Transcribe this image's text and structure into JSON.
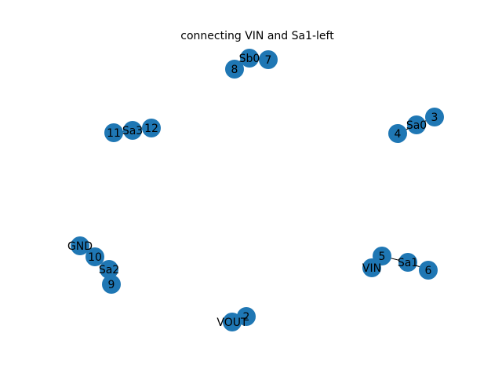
{
  "title": "connecting VIN and Sa1-left",
  "colors": {
    "node": "#1f77b4",
    "edge": "#000000",
    "label": "#000000",
    "background": "#ffffff"
  },
  "nodes": [
    {
      "id": "Sb0",
      "label": "Sb0"
    },
    {
      "id": "7",
      "label": "7"
    },
    {
      "id": "8",
      "label": "8"
    },
    {
      "id": "Sa0",
      "label": "Sa0"
    },
    {
      "id": "3",
      "label": "3"
    },
    {
      "id": "4",
      "label": "4"
    },
    {
      "id": "Sa3",
      "label": "Sa3"
    },
    {
      "id": "11",
      "label": "11"
    },
    {
      "id": "12",
      "label": "12"
    },
    {
      "id": "GND",
      "label": "GND"
    },
    {
      "id": "10",
      "label": "10"
    },
    {
      "id": "Sa2",
      "label": "Sa2"
    },
    {
      "id": "9",
      "label": "9"
    },
    {
      "id": "5",
      "label": "5"
    },
    {
      "id": "Sa1",
      "label": "Sa1"
    },
    {
      "id": "VIN",
      "label": "VIN"
    },
    {
      "id": "6",
      "label": "6"
    },
    {
      "id": "VOUT",
      "label": "VOUT"
    },
    {
      "id": "2",
      "label": "2"
    }
  ],
  "edges": [
    [
      "Sb0",
      "7"
    ],
    [
      "Sb0",
      "8"
    ],
    [
      "Sa0",
      "3"
    ],
    [
      "Sa0",
      "4"
    ],
    [
      "Sa3",
      "11"
    ],
    [
      "Sa3",
      "12"
    ],
    [
      "GND",
      "10"
    ],
    [
      "10",
      "Sa2"
    ],
    [
      "Sa2",
      "9"
    ],
    [
      "5",
      "Sa1"
    ],
    [
      "5",
      "VIN"
    ],
    [
      "Sa1",
      "6"
    ],
    [
      "VOUT",
      "2"
    ]
  ]
}
